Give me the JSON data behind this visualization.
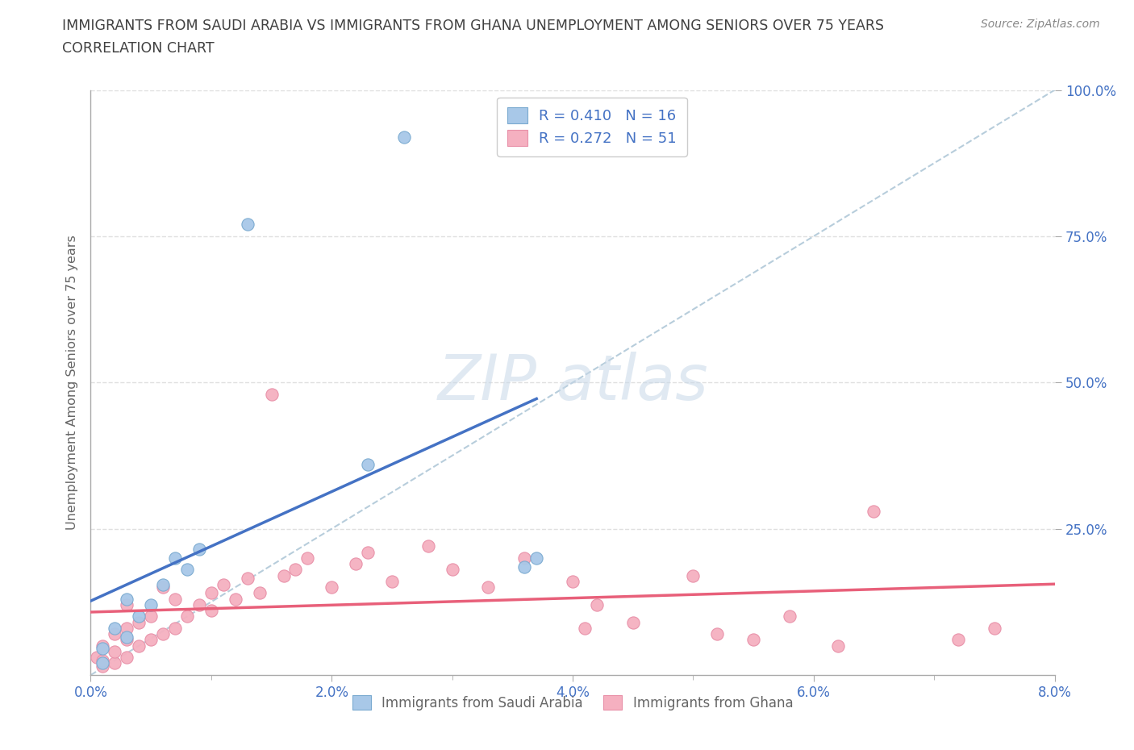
{
  "title_line1": "IMMIGRANTS FROM SAUDI ARABIA VS IMMIGRANTS FROM GHANA UNEMPLOYMENT AMONG SENIORS OVER 75 YEARS",
  "title_line2": "CORRELATION CHART",
  "source_text": "Source: ZipAtlas.com",
  "ylabel": "Unemployment Among Seniors over 75 years",
  "xlim": [
    0.0,
    0.08
  ],
  "ylim": [
    0.0,
    1.0
  ],
  "xtick_labels": [
    "0.0%",
    "",
    "2.0%",
    "",
    "4.0%",
    "",
    "6.0%",
    "",
    "8.0%"
  ],
  "xtick_vals": [
    0.0,
    0.01,
    0.02,
    0.03,
    0.04,
    0.05,
    0.06,
    0.07,
    0.08
  ],
  "xtick_display": [
    "0.0%",
    "2.0%",
    "4.0%",
    "6.0%",
    "8.0%"
  ],
  "xtick_display_vals": [
    0.0,
    0.02,
    0.04,
    0.06,
    0.08
  ],
  "ytick_labels": [
    "25.0%",
    "50.0%",
    "75.0%",
    "100.0%"
  ],
  "ytick_vals": [
    0.25,
    0.5,
    0.75,
    1.0
  ],
  "saudi_color": "#a8c8e8",
  "saudi_edge": "#7aaad0",
  "ghana_color": "#f5b0c0",
  "ghana_edge": "#e890a8",
  "saudi_line_color": "#4472c4",
  "ghana_line_color": "#e8607a",
  "saudi_R": 0.41,
  "saudi_N": 16,
  "ghana_R": 0.272,
  "ghana_N": 51,
  "saudi_x": [
    0.001,
    0.001,
    0.002,
    0.003,
    0.003,
    0.004,
    0.005,
    0.006,
    0.007,
    0.008,
    0.009,
    0.013,
    0.023,
    0.026,
    0.036,
    0.037
  ],
  "saudi_y": [
    0.02,
    0.045,
    0.08,
    0.065,
    0.13,
    0.1,
    0.12,
    0.155,
    0.2,
    0.18,
    0.215,
    0.77,
    0.36,
    0.92,
    0.185,
    0.2
  ],
  "ghana_x": [
    0.0005,
    0.001,
    0.001,
    0.001,
    0.002,
    0.002,
    0.002,
    0.003,
    0.003,
    0.003,
    0.003,
    0.004,
    0.004,
    0.005,
    0.005,
    0.006,
    0.006,
    0.007,
    0.007,
    0.008,
    0.009,
    0.01,
    0.01,
    0.011,
    0.012,
    0.013,
    0.014,
    0.015,
    0.016,
    0.017,
    0.018,
    0.02,
    0.022,
    0.023,
    0.025,
    0.028,
    0.03,
    0.033,
    0.036,
    0.04,
    0.041,
    0.042,
    0.045,
    0.05,
    0.052,
    0.055,
    0.058,
    0.062,
    0.065,
    0.072,
    0.075
  ],
  "ghana_y": [
    0.03,
    0.015,
    0.025,
    0.05,
    0.02,
    0.04,
    0.07,
    0.03,
    0.06,
    0.08,
    0.12,
    0.05,
    0.09,
    0.06,
    0.1,
    0.07,
    0.15,
    0.08,
    0.13,
    0.1,
    0.12,
    0.14,
    0.11,
    0.155,
    0.13,
    0.165,
    0.14,
    0.48,
    0.17,
    0.18,
    0.2,
    0.15,
    0.19,
    0.21,
    0.16,
    0.22,
    0.18,
    0.15,
    0.2,
    0.16,
    0.08,
    0.12,
    0.09,
    0.17,
    0.07,
    0.06,
    0.1,
    0.05,
    0.28,
    0.06,
    0.08
  ],
  "diag_color": "#b0c8d8",
  "grid_color": "#e0e0e0",
  "watermark_color": "#c8d8e8",
  "background_color": "#ffffff",
  "title_color": "#404040",
  "axis_label_color": "#666666",
  "tick_color": "#4472c4",
  "legend_text_color": "#4472c4",
  "source_color": "#888888"
}
